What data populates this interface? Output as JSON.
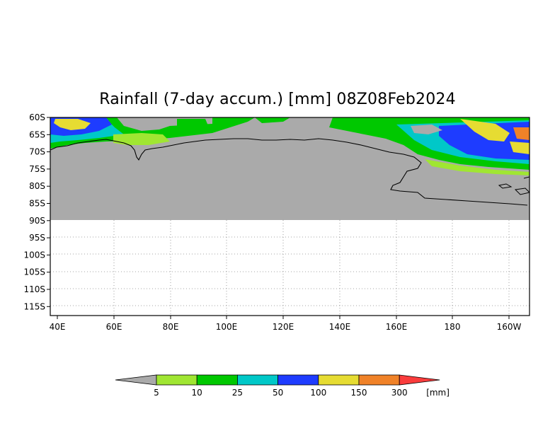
{
  "title": "Rainfall (7-day accum.) [mm] 08Z08Feb2024",
  "map": {
    "lat_labels": [
      "60S",
      "65S",
      "70S",
      "75S",
      "80S",
      "85S",
      "90S",
      "95S",
      "100S",
      "105S",
      "110S",
      "115S"
    ],
    "lon_labels": [
      "40E",
      "60E",
      "80E",
      "100E",
      "120E",
      "140E",
      "160E",
      "180",
      "160W"
    ],
    "land_color": "#aaaaaa",
    "gridlines": "dotted"
  },
  "colorbar": {
    "unit": "[mm]",
    "ticks": [
      "5",
      "10",
      "25",
      "50",
      "100",
      "150",
      "300"
    ],
    "colors": [
      "#aaaaaa",
      "#a0e632",
      "#00c800",
      "#00c8c8",
      "#1e3cff",
      "#e6dc32",
      "#f08228",
      "#fa3c3c"
    ]
  }
}
